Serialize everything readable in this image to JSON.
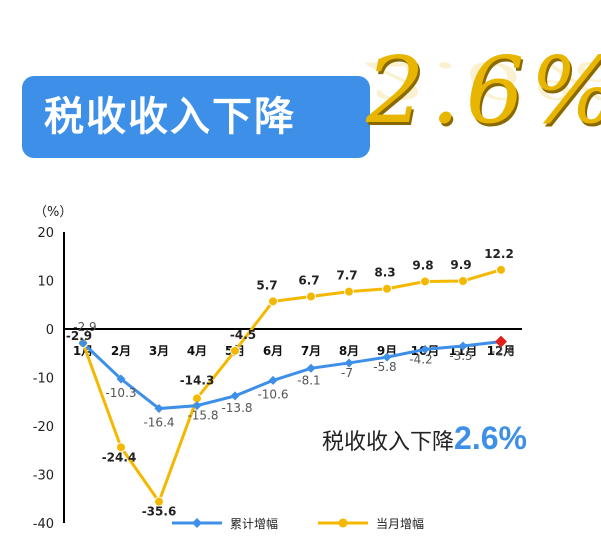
{
  "banner": {
    "title": "税收收入下降",
    "highlight_number": "2.6%"
  },
  "callout": {
    "text": "税收收入下降",
    "number": "2.6%"
  },
  "colors": {
    "cumulative": "#3d8fe8",
    "monthly": "#f5b800",
    "marker_last": "#e0201a",
    "banner_bg": "#3d8fe8",
    "gold": "#e8b600"
  },
  "chart_data": {
    "type": "line",
    "ylabel": "（%）",
    "ylim": [
      -40,
      20
    ],
    "yticks": [
      "20",
      "10",
      "0",
      "-10",
      "-20",
      "-30",
      "-40"
    ],
    "categories": [
      "1月",
      "2月",
      "3月",
      "4月",
      "5月",
      "6月",
      "7月",
      "8月",
      "9月",
      "10月",
      "11月",
      "12月"
    ],
    "series": [
      {
        "name": "累计增幅",
        "values": [
          -2.9,
          -10.3,
          -16.4,
          -15.8,
          -13.8,
          -10.6,
          -8.1,
          -7,
          -5.8,
          -4.2,
          -3.5,
          -2.6
        ],
        "labels": [
          "-2.9",
          "-10.3",
          "-16.4",
          "-15.8",
          "-13.8",
          "-10.6",
          "-8.1",
          "-7",
          "-5.8",
          "-4.2",
          "-3.5",
          "-2.6"
        ]
      },
      {
        "name": "当月增幅",
        "values": [
          -2.9,
          -24.4,
          -35.6,
          -14.3,
          -4.5,
          5.7,
          6.7,
          7.7,
          8.3,
          9.8,
          9.9,
          12.2
        ],
        "labels": [
          "-2.9",
          "-24.4",
          "-35.6",
          "-14.3",
          "-4.5",
          "5.7",
          "6.7",
          "7.7",
          "8.3",
          "9.8",
          "9.9",
          "12.2"
        ]
      }
    ],
    "legend_position": "bottom"
  }
}
